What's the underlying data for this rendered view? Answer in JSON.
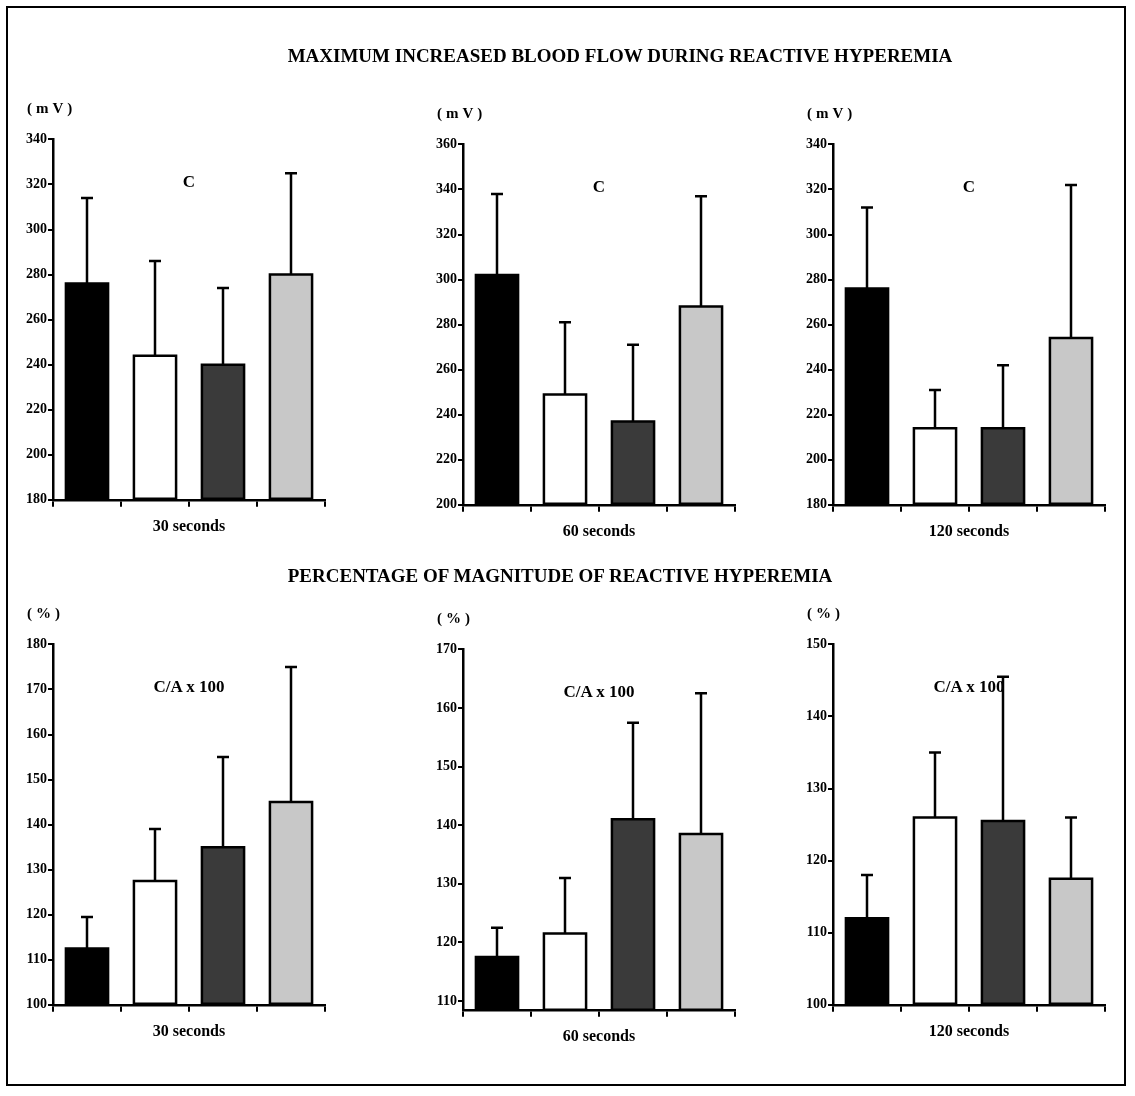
{
  "chart_data": [
    {
      "type": "bar",
      "xlabel": "30 seconds",
      "ylabel": "(mV)",
      "annotations": [
        "C"
      ],
      "categories": [
        null,
        null,
        null,
        null
      ],
      "values": [
        276,
        244,
        240,
        280
      ],
      "errors": [
        [
          276,
          314
        ],
        [
          244,
          286
        ],
        [
          240,
          274
        ],
        [
          280,
          325
        ]
      ],
      "colors": [
        "#000000",
        "#ffffff",
        "#3a3a3a",
        "#c8c8c8"
      ],
      "ylim": [
        180,
        340
      ],
      "yticks": [
        180,
        200,
        220,
        240,
        260,
        280,
        300,
        320,
        340
      ],
      "tick_labels": "y"
    },
    {
      "type": "bar",
      "title": "MAXIMUM INCREASED BLOOD FLOW DURING REACTIVE HYPEREMIA",
      "xlabel": "60 seconds",
      "ylabel": "(mV)",
      "annotations": [
        "C"
      ],
      "categories": [
        null,
        null,
        null,
        null
      ],
      "values": [
        302,
        249,
        237,
        288
      ],
      "errors": [
        [
          302,
          338
        ],
        [
          249,
          281
        ],
        [
          237,
          271
        ],
        [
          288,
          337
        ]
      ],
      "colors": [
        "#000000",
        "#ffffff",
        "#3a3a3a",
        "#c8c8c8"
      ],
      "ylim": [
        200,
        360
      ],
      "yticks": [
        200,
        220,
        240,
        260,
        280,
        300,
        320,
        340,
        360
      ],
      "tick_labels": "y"
    },
    {
      "type": "bar",
      "xlabel": "120 seconds",
      "ylabel": "(mV)",
      "annotations": [
        "C"
      ],
      "categories": [
        null,
        null,
        null,
        null
      ],
      "values": [
        276,
        214,
        214,
        254
      ],
      "errors": [
        [
          276,
          312
        ],
        [
          214,
          231
        ],
        [
          214,
          242
        ],
        [
          254,
          322
        ]
      ],
      "colors": [
        "#000000",
        "#ffffff",
        "#3a3a3a",
        "#c8c8c8"
      ],
      "ylim": [
        180,
        340
      ],
      "yticks": [
        180,
        200,
        220,
        240,
        260,
        280,
        300,
        320,
        340
      ],
      "tick_labels": "y"
    },
    {
      "type": "bar",
      "xlabel": "30 seconds",
      "ylabel": "(%)",
      "annotations": [
        "C/A x 100"
      ],
      "categories": [
        null,
        null,
        null,
        null
      ],
      "values": [
        112.5,
        127.5,
        135,
        145
      ],
      "errors": [
        [
          112.5,
          119.5
        ],
        [
          127.5,
          139
        ],
        [
          135,
          155
        ],
        [
          145,
          175
        ]
      ],
      "colors": [
        "#000000",
        "#ffffff",
        "#3a3a3a",
        "#c8c8c8"
      ],
      "ylim": [
        100,
        180
      ],
      "yticks": [
        100,
        110,
        120,
        130,
        140,
        150,
        160,
        170,
        180
      ],
      "tick_labels": "y"
    },
    {
      "type": "bar",
      "title": "PERCENTAGE OF MAGNITUDE OF REACTIVE HYPEREMIA",
      "xlabel": "60 seconds",
      "ylabel": "(%)",
      "annotations": [
        "C/A x 100"
      ],
      "categories": [
        null,
        null,
        null,
        null
      ],
      "values": [
        117.5,
        121.5,
        141,
        138.5
      ],
      "errors": [
        [
          117.5,
          122.5
        ],
        [
          121.5,
          131
        ],
        [
          141,
          157.5
        ],
        [
          138.5,
          162.5
        ]
      ],
      "colors": [
        "#000000",
        "#ffffff",
        "#3a3a3a",
        "#c8c8c8"
      ],
      "ylim": [
        108.5,
        170
      ],
      "yticks": [
        110,
        120,
        130,
        140,
        150,
        160,
        170
      ],
      "tick_labels": "y"
    },
    {
      "type": "bar",
      "xlabel": "120 seconds",
      "ylabel": "(%)",
      "annotations": [
        "C/A x 100"
      ],
      "categories": [
        null,
        null,
        null,
        null
      ],
      "values": [
        112,
        126,
        125.5,
        117.5
      ],
      "errors": [
        [
          112,
          118
        ],
        [
          126,
          135
        ],
        [
          125.5,
          145.5
        ],
        [
          117.5,
          126
        ]
      ],
      "colors": [
        "#000000",
        "#ffffff",
        "#3a3a3a",
        "#c8c8c8"
      ],
      "ylim": [
        100,
        150
      ],
      "yticks": [
        100,
        110,
        120,
        130,
        140,
        150
      ],
      "tick_labels": "y"
    }
  ]
}
